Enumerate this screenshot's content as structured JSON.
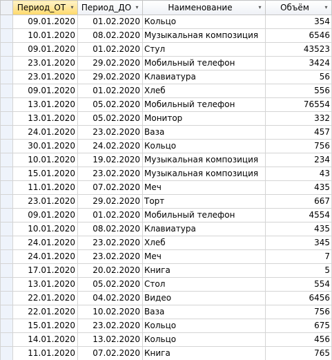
{
  "columns": [
    {
      "label": "Период_ОТ",
      "sorted": true
    },
    {
      "label": "Период_ДО",
      "sorted": false
    },
    {
      "label": "Наименование",
      "sorted": false
    },
    {
      "label": "Объём",
      "sorted": false
    }
  ],
  "rows": [
    [
      "09.01.2020",
      "01.02.2020",
      "Кольцо",
      "354"
    ],
    [
      "10.01.2020",
      "08.02.2020",
      "Музыкальная композиция",
      "6546"
    ],
    [
      "09.01.2020",
      "01.02.2020",
      "Стул",
      "43523"
    ],
    [
      "23.01.2020",
      "29.02.2020",
      "Мобильный телефон",
      "3424"
    ],
    [
      "23.01.2020",
      "29.02.2020",
      "Клавиатура",
      "56"
    ],
    [
      "09.01.2020",
      "01.02.2020",
      "Хлеб",
      "556"
    ],
    [
      "13.01.2020",
      "05.02.2020",
      "Мобильный телефон",
      "76554"
    ],
    [
      "13.01.2020",
      "05.02.2020",
      "Монитор",
      "332"
    ],
    [
      "24.01.2020",
      "23.02.2020",
      "Ваза",
      "457"
    ],
    [
      "30.01.2020",
      "24.02.2020",
      "Кольцо",
      "756"
    ],
    [
      "10.01.2020",
      "19.02.2020",
      "Музыкальная композиция",
      "234"
    ],
    [
      "15.01.2020",
      "23.02.2020",
      "Музыкальная композиция",
      "43"
    ],
    [
      "11.01.2020",
      "07.02.2020",
      "Меч",
      "435"
    ],
    [
      "23.01.2020",
      "29.02.2020",
      "Торт",
      "667"
    ],
    [
      "09.01.2020",
      "01.02.2020",
      "Мобильный телефон",
      "4554"
    ],
    [
      "10.01.2020",
      "08.02.2020",
      "Клавиатура",
      "435"
    ],
    [
      "24.01.2020",
      "23.02.2020",
      "Хлеб",
      "345"
    ],
    [
      "24.01.2020",
      "23.02.2020",
      "Меч",
      "7"
    ],
    [
      "17.01.2020",
      "20.02.2020",
      "Книга",
      "5"
    ],
    [
      "13.01.2020",
      "05.02.2020",
      "Стол",
      "554"
    ],
    [
      "22.01.2020",
      "04.02.2020",
      "Видео",
      "6456"
    ],
    [
      "22.01.2020",
      "10.02.2020",
      "Ваза",
      "756"
    ],
    [
      "15.01.2020",
      "23.02.2020",
      "Кольцо",
      "675"
    ],
    [
      "14.01.2020",
      "13.02.2020",
      "Кольцо",
      "456"
    ],
    [
      "11.01.2020",
      "07.02.2020",
      "Книга",
      "765"
    ]
  ]
}
